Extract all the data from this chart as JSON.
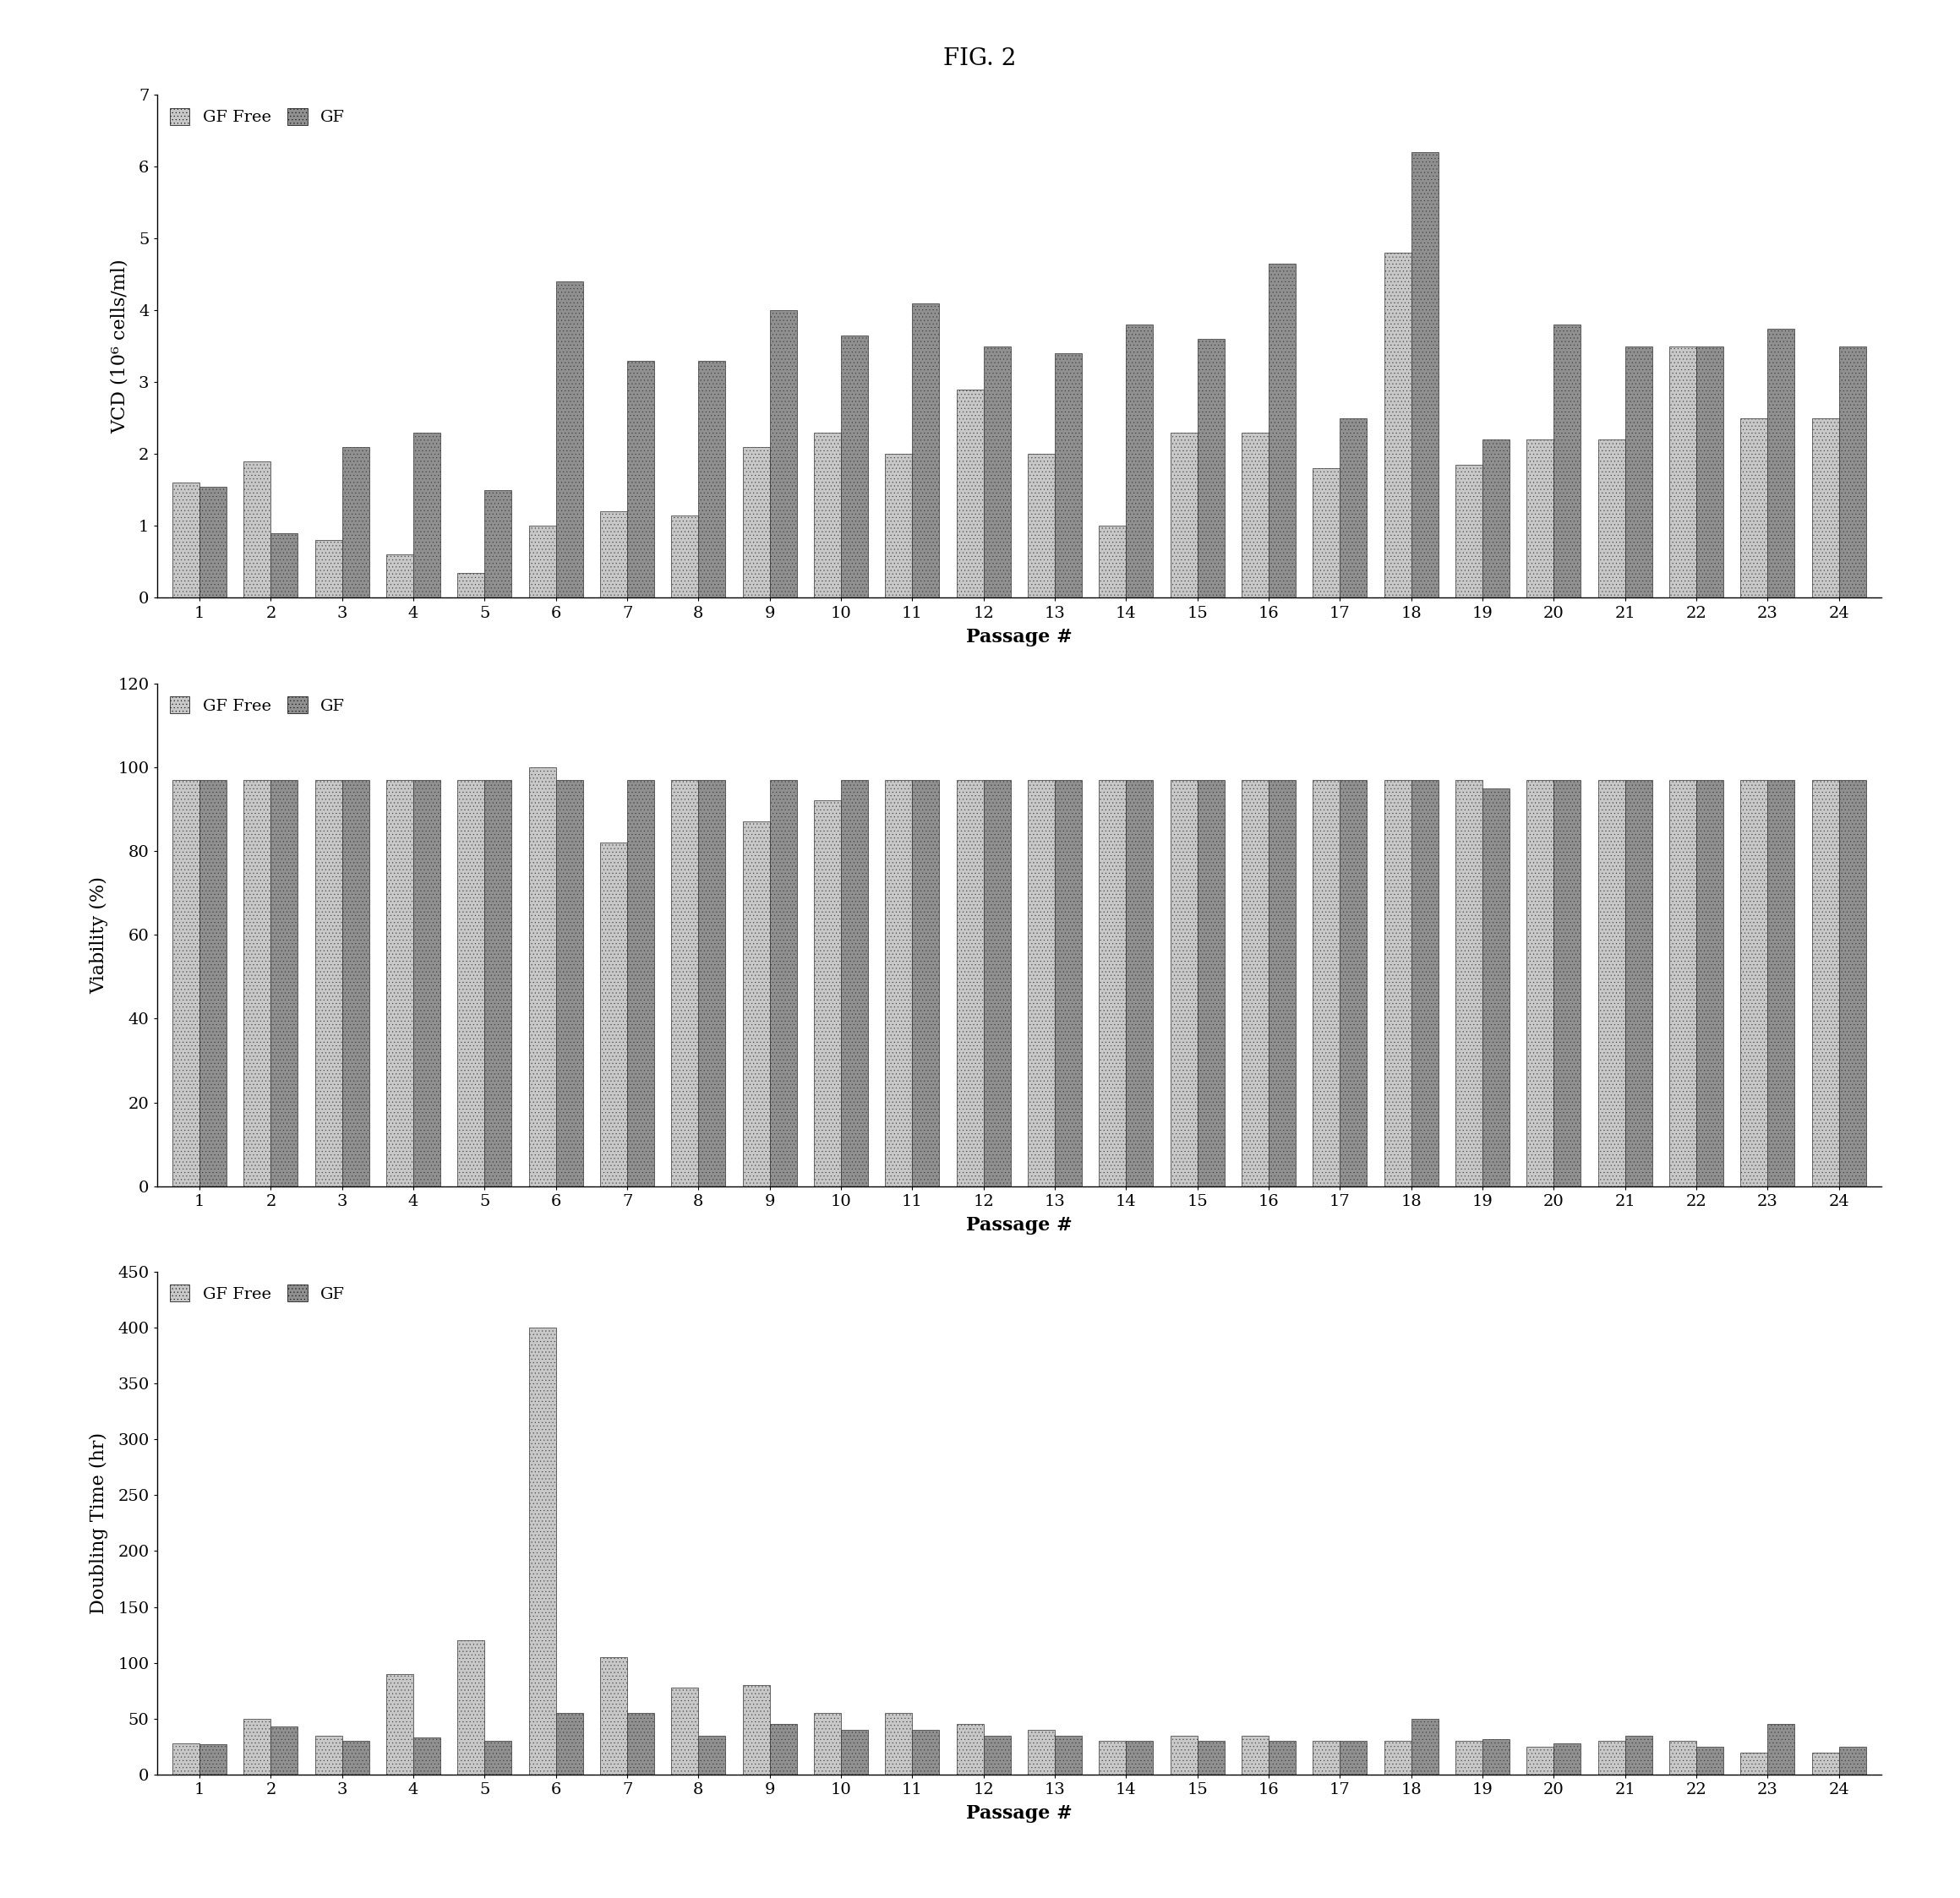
{
  "title": "FIG. 2",
  "passages": [
    1,
    2,
    3,
    4,
    5,
    6,
    7,
    8,
    9,
    10,
    11,
    12,
    13,
    14,
    15,
    16,
    17,
    18,
    19,
    20,
    21,
    22,
    23,
    24
  ],
  "vcd_gf_free": [
    1.6,
    1.9,
    0.8,
    0.6,
    0.35,
    1.0,
    1.2,
    1.15,
    2.1,
    2.3,
    2.0,
    2.9,
    2.0,
    1.0,
    2.3,
    2.3,
    1.8,
    4.8,
    1.85,
    2.2,
    2.2,
    3.5,
    2.5,
    2.5
  ],
  "vcd_gf": [
    1.55,
    0.9,
    2.1,
    2.3,
    1.5,
    4.4,
    3.3,
    3.3,
    4.0,
    3.65,
    4.1,
    3.5,
    3.4,
    3.8,
    3.6,
    4.65,
    2.5,
    6.2,
    2.2,
    3.8,
    3.5,
    3.5,
    3.75,
    3.5
  ],
  "viability_gf_free": [
    97,
    97,
    97,
    97,
    97,
    100,
    82,
    97,
    87,
    92,
    97,
    97,
    97,
    97,
    97,
    97,
    97,
    97,
    97,
    97,
    97,
    97,
    97,
    97
  ],
  "viability_gf": [
    97,
    97,
    97,
    97,
    97,
    97,
    97,
    97,
    97,
    97,
    97,
    97,
    97,
    97,
    97,
    97,
    97,
    97,
    95,
    97,
    97,
    97,
    97,
    97
  ],
  "doubling_gf_free": [
    28,
    50,
    35,
    90,
    120,
    400,
    105,
    78,
    80,
    55,
    55,
    45,
    40,
    30,
    35,
    35,
    30,
    30,
    30,
    25,
    30,
    30,
    20,
    20
  ],
  "doubling_gf": [
    27,
    43,
    30,
    33,
    30,
    55,
    55,
    35,
    45,
    40,
    40,
    35,
    35,
    30,
    30,
    30,
    30,
    50,
    32,
    28,
    35,
    25,
    45,
    25
  ],
  "vcd_ylabel": "VCD (10⁶ cells/ml)",
  "viability_ylabel": "Viability (%)",
  "doubling_ylabel": "Doubling Time (hr)",
  "xlabel": "Passage #",
  "vcd_ylim": [
    0,
    7
  ],
  "vcd_yticks": [
    0,
    1,
    2,
    3,
    4,
    5,
    6,
    7
  ],
  "viability_ylim": [
    0,
    120
  ],
  "viability_yticks": [
    0,
    20,
    40,
    60,
    80,
    100,
    120
  ],
  "doubling_ylim": [
    0,
    450
  ],
  "doubling_yticks": [
    0,
    50,
    100,
    150,
    200,
    250,
    300,
    350,
    400,
    450
  ],
  "bar_color_gf_free": "#c8c8c8",
  "bar_color_gf": "#909090",
  "bar_hatch": "....",
  "legend_label_1": "GF Free",
  "legend_label_2": "GF",
  "bg_color": "#ffffff",
  "bar_width": 0.38,
  "bar_edge_color": "#333333",
  "title_fontsize": 20,
  "axis_label_fontsize": 16,
  "tick_fontsize": 14,
  "legend_fontsize": 14
}
